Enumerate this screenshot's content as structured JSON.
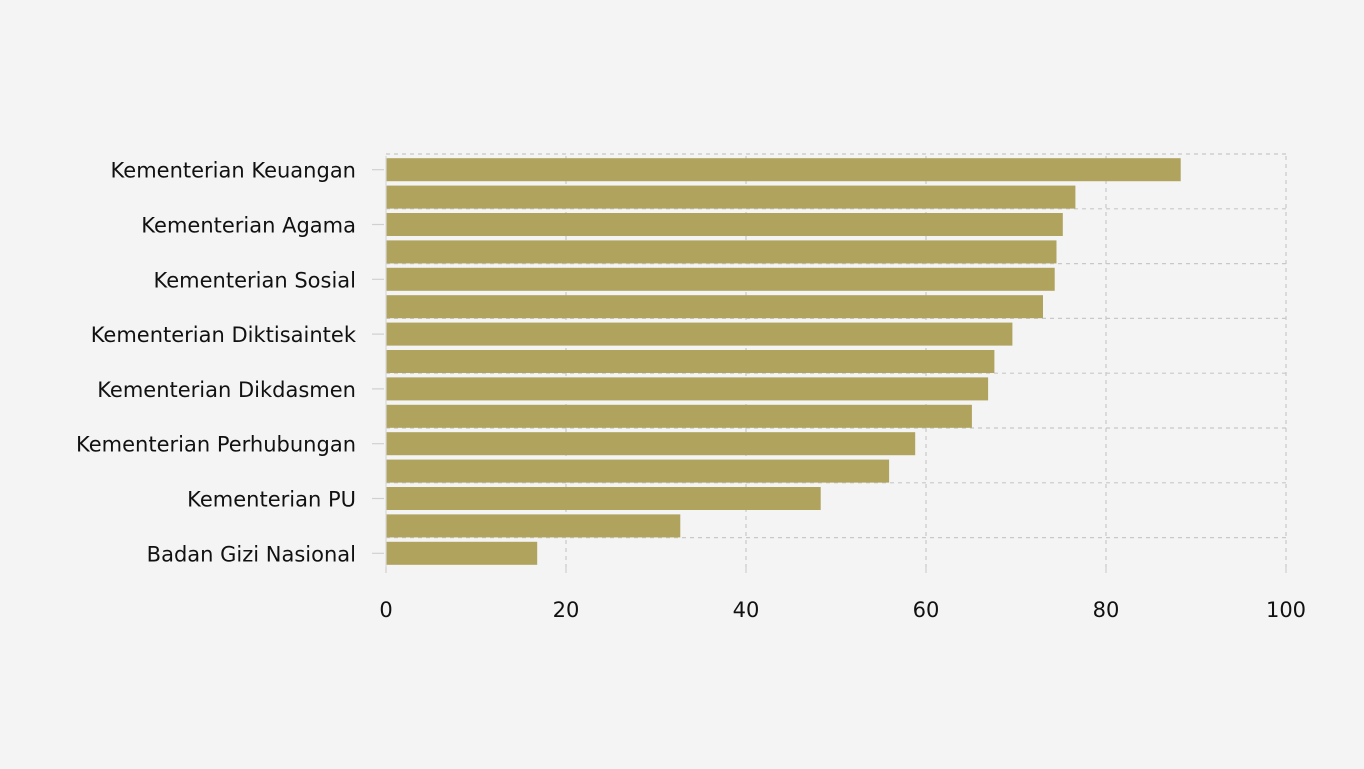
{
  "chart_data": {
    "type": "bar",
    "orientation": "horizontal",
    "title": "",
    "xlabel": "",
    "ylabel": "",
    "xlim": [
      0,
      100
    ],
    "x_ticks": [
      "0",
      "20",
      "40",
      "60",
      "80",
      "100"
    ],
    "grid": true,
    "bar_color": "#b0a35d",
    "background_color": "#f4f4f4",
    "categories": [
      "Kementerian Keuangan",
      "",
      "Kementerian Agama",
      "",
      "Kementerian Sosial",
      "",
      "Kementerian Diktisaintek",
      "",
      "Kementerian Dikdasmen",
      "",
      "Kementerian Perhubungan",
      "",
      "Kementerian PU",
      "",
      "Badan Gizi Nasional"
    ],
    "values": [
      88.3,
      76.6,
      75.2,
      74.5,
      74.3,
      73.0,
      69.6,
      67.6,
      66.9,
      65.1,
      58.8,
      55.9,
      48.3,
      32.7,
      16.8
    ]
  }
}
